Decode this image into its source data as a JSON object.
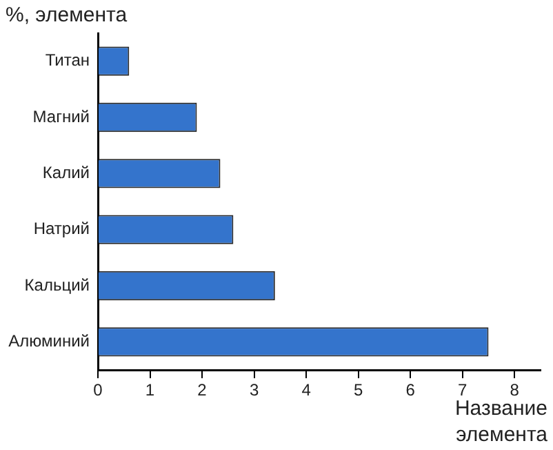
{
  "chart_data": {
    "type": "bar",
    "orientation": "horizontal",
    "xlabel": "Название элемента",
    "ylabel": "%, элемента",
    "categories": [
      "Титан",
      "Магний",
      "Калий",
      "Натрий",
      "Кальций",
      "Алюминий"
    ],
    "values": [
      0.6,
      1.9,
      2.35,
      2.6,
      3.4,
      7.5
    ],
    "color": "#3474cc",
    "xlim": [
      0,
      8.5
    ],
    "xticks": [
      0,
      1,
      2,
      3,
      4,
      5,
      6,
      7,
      8
    ],
    "grid": false,
    "legend": false
  }
}
